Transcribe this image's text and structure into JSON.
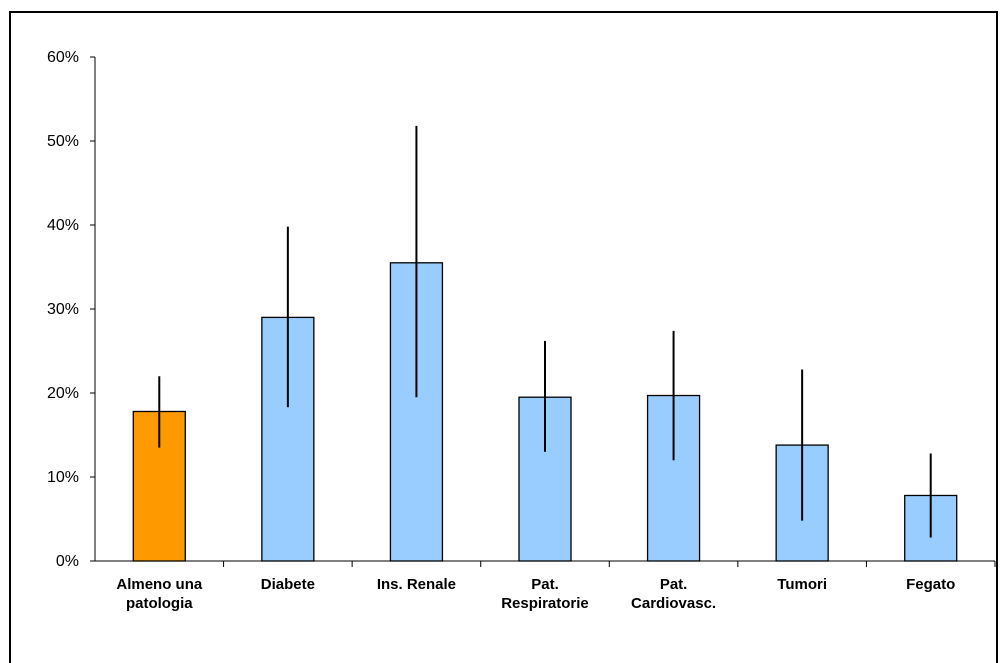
{
  "chart_data": {
    "type": "bar",
    "title": "",
    "xlabel": "",
    "ylabel": "",
    "ylim": [
      0,
      0.6
    ],
    "yticks": [
      "0%",
      "10%",
      "20%",
      "30%",
      "40%",
      "50%",
      "60%"
    ],
    "categories": [
      [
        "Almeno una",
        "patologia"
      ],
      [
        "Diabete"
      ],
      [
        "Ins. Renale"
      ],
      [
        "Pat.",
        "Respiratorie"
      ],
      [
        "Pat.",
        "Cardiovasc."
      ],
      [
        "Tumori"
      ],
      [
        "Fegato"
      ]
    ],
    "values": [
      0.178,
      0.29,
      0.355,
      0.195,
      0.197,
      0.138,
      0.078
    ],
    "error_low": [
      0.135,
      0.183,
      0.195,
      0.13,
      0.12,
      0.048,
      0.028
    ],
    "error_high": [
      0.22,
      0.398,
      0.518,
      0.262,
      0.274,
      0.228,
      0.128
    ],
    "colors": [
      "#FF9900",
      "#99CCFF",
      "#99CCFF",
      "#99CCFF",
      "#99CCFF",
      "#99CCFF",
      "#99CCFF"
    ],
    "grid": false,
    "legend": "none"
  }
}
